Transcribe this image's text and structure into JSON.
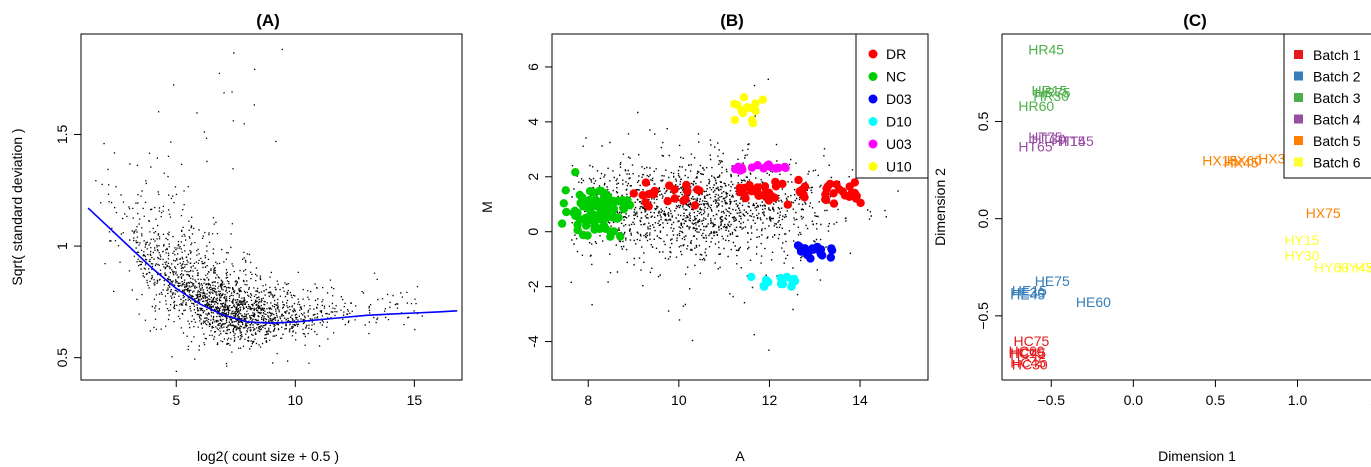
{
  "chart_data": [
    {
      "type": "scatter",
      "title": "(A)",
      "xlabel": "log2( count size + 0.5 )",
      "ylabel": "Sqrt( standard deviation )",
      "xlim": [
        1,
        17
      ],
      "ylim": [
        0.4,
        1.95
      ],
      "xticks": [
        5,
        10,
        15
      ],
      "yticks": [
        0.5,
        1.0,
        1.5
      ],
      "series": [
        {
          "style": "points",
          "color": "#000000",
          "summary": "dense cloud of gene-level points, about 12000 genes"
        },
        {
          "style": "line",
          "color": "#0000ff",
          "x": [
            1.3,
            2,
            3,
            4,
            5,
            6,
            7,
            8,
            9,
            10,
            11,
            12,
            13,
            14,
            15,
            16,
            16.8
          ],
          "y": [
            1.17,
            1.1,
            1.0,
            0.9,
            0.81,
            0.74,
            0.69,
            0.66,
            0.655,
            0.66,
            0.67,
            0.68,
            0.69,
            0.695,
            0.7,
            0.705,
            0.71
          ]
        }
      ]
    },
    {
      "type": "scatter",
      "title": "(B)",
      "xlabel": "A",
      "ylabel": "M",
      "xlim": [
        7.2,
        15.5
      ],
      "ylim": [
        -5.4,
        7.2
      ],
      "xticks": [
        8,
        10,
        12,
        14
      ],
      "yticks": [
        -4,
        -2,
        0,
        2,
        4,
        6
      ],
      "legend_position": "top-right",
      "series": [
        {
          "name": "DR",
          "color": "#ff0000",
          "center": [
            11,
            1.4
          ]
        },
        {
          "name": "NC",
          "color": "#00cd00",
          "center": [
            8.1,
            0.8
          ]
        },
        {
          "name": "D03",
          "color": "#0000ff",
          "center": [
            12.8,
            -0.6
          ]
        },
        {
          "name": "D10",
          "color": "#00ffff",
          "center": [
            12.1,
            -1.8
          ]
        },
        {
          "name": "U03",
          "color": "#ff00ff",
          "center": [
            11.8,
            2.3
          ]
        },
        {
          "name": "U10",
          "color": "#ffff00",
          "center": [
            11.5,
            4.3
          ]
        }
      ]
    },
    {
      "type": "scatter",
      "title": "(C)",
      "xlabel": "Dimension 1",
      "ylabel": "Dimension 2",
      "xlim": [
        -0.8,
        1.6
      ],
      "ylim": [
        -0.83,
        0.95
      ],
      "xticks": [
        -0.5,
        0.0,
        0.5,
        1.0,
        1.5
      ],
      "xtick_labels": [
        "−0.5",
        "0.0",
        "0.5",
        "1.0",
        "1.5"
      ],
      "yticks": [
        -0.5,
        0.0,
        0.5
      ],
      "ytick_labels": [
        "−0.5",
        "0.0",
        "0.5"
      ],
      "legend_position": "top-right",
      "series": [
        {
          "name": "Batch 1",
          "color": "#e41a1c",
          "points": [
            {
              "label": "HC75",
              "x": -0.73,
              "y": -0.63
            },
            {
              "label": "HC60",
              "x": -0.76,
              "y": -0.68
            },
            {
              "label": "HC15",
              "x": -0.76,
              "y": -0.69
            },
            {
              "label": "HC45",
              "x": -0.75,
              "y": -0.69
            },
            {
              "label": "HC30",
              "x": -0.74,
              "y": -0.75
            },
            {
              "label": "HC45",
              "x": -0.75,
              "y": -0.74
            }
          ]
        },
        {
          "name": "Batch 2",
          "color": "#377eb8",
          "points": [
            {
              "label": "HE75",
              "x": -0.6,
              "y": -0.32
            },
            {
              "label": "HE15",
              "x": -0.74,
              "y": -0.37
            },
            {
              "label": "HE30",
              "x": -0.75,
              "y": -0.38
            },
            {
              "label": "HE45",
              "x": -0.75,
              "y": -0.39
            },
            {
              "label": "HE60",
              "x": -0.35,
              "y": -0.43
            }
          ]
        },
        {
          "name": "Batch 3",
          "color": "#4daf4a",
          "points": [
            {
              "label": "HR45",
              "x": -0.64,
              "y": 0.87
            },
            {
              "label": "HR15",
              "x": -0.62,
              "y": 0.66
            },
            {
              "label": "HR75",
              "x": -0.6,
              "y": 0.65
            },
            {
              "label": "HR30",
              "x": -0.61,
              "y": 0.63
            },
            {
              "label": "HR60",
              "x": -0.7,
              "y": 0.58
            }
          ]
        },
        {
          "name": "Batch 4",
          "color": "#984ea3",
          "points": [
            {
              "label": "HT75",
              "x": -0.64,
              "y": 0.42
            },
            {
              "label": "HT30",
              "x": -0.62,
              "y": 0.41
            },
            {
              "label": "HT15",
              "x": -0.5,
              "y": 0.4
            },
            {
              "label": "HT45",
              "x": -0.45,
              "y": 0.4
            },
            {
              "label": "HT65",
              "x": -0.7,
              "y": 0.37
            }
          ]
        },
        {
          "name": "Batch 5",
          "color": "#ff7f00",
          "points": [
            {
              "label": "HX15",
              "x": 0.42,
              "y": 0.3
            },
            {
              "label": "HX60",
              "x": 0.57,
              "y": 0.3
            },
            {
              "label": "HX45",
              "x": 0.55,
              "y": 0.29
            },
            {
              "label": "HX30",
              "x": 0.76,
              "y": 0.31
            },
            {
              "label": "HX75",
              "x": 1.05,
              "y": 0.03
            }
          ]
        },
        {
          "name": "Batch 6",
          "color": "#ffff33",
          "points": [
            {
              "label": "HY15",
              "x": 0.92,
              "y": -0.11
            },
            {
              "label": "HY30",
              "x": 0.92,
              "y": -0.19
            },
            {
              "label": "HY60",
              "x": 1.1,
              "y": -0.25
            },
            {
              "label": "HY45",
              "x": 1.25,
              "y": -0.25
            },
            {
              "label": "HY75",
              "x": 1.35,
              "y": -0.25
            }
          ]
        }
      ]
    }
  ]
}
